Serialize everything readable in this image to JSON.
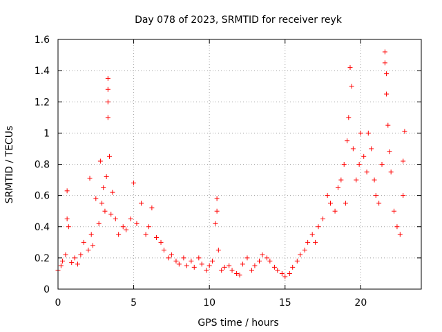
{
  "chart_data": {
    "type": "scatter",
    "title": "Day 078 of 2023, SRMTID for receiver reyk",
    "xlabel": "GPS time / hours",
    "ylabel": "SRMTID / TECUs",
    "xlim": [
      0,
      24
    ],
    "ylim": [
      0,
      1.6
    ],
    "xticks": [
      0,
      5,
      10,
      15,
      20
    ],
    "xtick_labels": [
      "0",
      "5",
      "10",
      "15",
      "20"
    ],
    "yticks": [
      0,
      0.2,
      0.4,
      0.6,
      0.8,
      1.0,
      1.2,
      1.4,
      1.6
    ],
    "ytick_labels": [
      "0",
      "0.2",
      "0.4",
      "0.6",
      "0.8",
      "1",
      "1.2",
      "1.4",
      "1.6"
    ],
    "grid": true,
    "marker": "+",
    "color": "#ff0000",
    "series": [
      {
        "name": "SRMTID",
        "x": [
          0.0,
          0.2,
          0.3,
          0.5,
          0.6,
          0.6,
          0.7,
          0.9,
          1.1,
          1.3,
          1.5,
          1.7,
          2.0,
          2.1,
          2.2,
          2.3,
          2.5,
          2.7,
          2.8,
          2.9,
          3.0,
          3.1,
          3.2,
          3.3,
          3.3,
          3.3,
          3.3,
          3.4,
          3.5,
          3.6,
          3.8,
          4.0,
          4.3,
          4.5,
          4.8,
          5.0,
          5.2,
          5.5,
          5.8,
          6.0,
          6.2,
          6.5,
          6.8,
          7.0,
          7.3,
          7.5,
          7.8,
          8.0,
          8.3,
          8.5,
          8.8,
          9.0,
          9.3,
          9.5,
          9.8,
          10.0,
          10.2,
          10.4,
          10.5,
          10.5,
          10.6,
          10.8,
          11.0,
          11.3,
          11.5,
          11.8,
          12.0,
          12.2,
          12.5,
          12.8,
          13.0,
          13.3,
          13.5,
          13.8,
          14.0,
          14.3,
          14.5,
          14.8,
          15.0,
          15.3,
          15.5,
          15.8,
          16.0,
          16.3,
          16.5,
          16.8,
          17.0,
          17.2,
          17.5,
          17.8,
          18.0,
          18.3,
          18.5,
          18.7,
          18.9,
          19.0,
          19.1,
          19.2,
          19.3,
          19.4,
          19.5,
          19.7,
          19.9,
          20.0,
          20.2,
          20.4,
          20.5,
          20.7,
          20.9,
          21.0,
          21.2,
          21.4,
          21.6,
          21.6,
          21.7,
          21.7,
          21.8,
          21.9,
          22.0,
          22.2,
          22.4,
          22.6,
          22.8,
          22.8,
          22.9
        ],
        "y": [
          0.12,
          0.15,
          0.18,
          0.22,
          0.45,
          0.63,
          0.4,
          0.17,
          0.2,
          0.16,
          0.22,
          0.3,
          0.25,
          0.71,
          0.35,
          0.28,
          0.58,
          0.42,
          0.82,
          0.55,
          0.65,
          0.5,
          0.72,
          1.35,
          1.28,
          1.2,
          1.1,
          0.85,
          0.48,
          0.62,
          0.45,
          0.35,
          0.4,
          0.38,
          0.45,
          0.68,
          0.42,
          0.55,
          0.35,
          0.4,
          0.52,
          0.33,
          0.3,
          0.25,
          0.2,
          0.22,
          0.18,
          0.16,
          0.2,
          0.15,
          0.18,
          0.14,
          0.2,
          0.16,
          0.12,
          0.15,
          0.18,
          0.42,
          0.58,
          0.5,
          0.25,
          0.12,
          0.14,
          0.15,
          0.12,
          0.1,
          0.09,
          0.16,
          0.2,
          0.12,
          0.15,
          0.18,
          0.22,
          0.2,
          0.18,
          0.14,
          0.12,
          0.1,
          0.08,
          0.1,
          0.14,
          0.18,
          0.22,
          0.25,
          0.3,
          0.35,
          0.3,
          0.4,
          0.45,
          0.6,
          0.55,
          0.5,
          0.65,
          0.7,
          0.8,
          0.55,
          0.95,
          1.1,
          1.42,
          1.3,
          0.9,
          0.7,
          0.8,
          1.0,
          0.85,
          0.75,
          1.0,
          0.9,
          0.7,
          0.6,
          0.55,
          0.8,
          1.52,
          1.45,
          1.38,
          1.25,
          1.05,
          0.88,
          0.75,
          0.5,
          0.4,
          0.35,
          0.6,
          0.82,
          1.01
        ]
      }
    ]
  }
}
